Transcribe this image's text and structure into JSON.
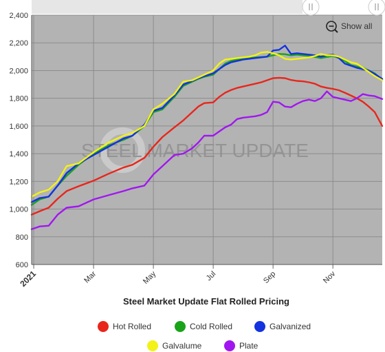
{
  "chart_data": {
    "type": "line",
    "title": "Steel Market Update Flat Rolled Pricing",
    "watermark": "STEEL MARKET UPDATE",
    "show_all_label": "Show all",
    "xlabel": "",
    "ylabel": "",
    "ylim": [
      600,
      2400
    ],
    "yticks": [
      "600",
      "800",
      "1,000",
      "1,200",
      "1,400",
      "1,600",
      "1,800",
      "2,000",
      "2,200",
      "2,400"
    ],
    "xlim": [
      -0.07,
      11.65
    ],
    "xticks": [
      {
        "label": "2021",
        "x": 0,
        "bold": true
      },
      {
        "label": "Mar",
        "x": 2,
        "bold": false
      },
      {
        "label": "May",
        "x": 4,
        "bold": false
      },
      {
        "label": "Jul",
        "x": 6,
        "bold": false
      },
      {
        "label": "Sep",
        "x": 8,
        "bold": false
      },
      {
        "label": "Nov",
        "x": 10,
        "bold": false
      }
    ],
    "grid": true,
    "legend_position": "bottom",
    "plot_background": "#b3b3b3",
    "series": [
      {
        "name": "Hot Rolled",
        "color": "#e8261c",
        "x": [
          -0.07,
          0.2,
          0.5,
          0.8,
          1.1,
          1.5,
          2,
          2.5,
          3,
          3.3,
          3.7,
          4,
          4.3,
          4.7,
          5,
          5.3,
          5.5,
          5.7,
          6,
          6.2,
          6.4,
          6.6,
          6.8,
          7,
          7.2,
          7.4,
          7.6,
          7.8,
          8,
          8.2,
          8.4,
          8.6,
          8.8,
          9,
          9.2,
          9.4,
          9.6,
          9.8,
          10,
          10.2,
          10.4,
          10.6,
          10.8,
          11,
          11.2,
          11.4,
          11.65
        ],
        "values": [
          960,
          985,
          1010,
          1075,
          1130,
          1165,
          1205,
          1255,
          1300,
          1320,
          1370,
          1450,
          1520,
          1590,
          1640,
          1700,
          1740,
          1765,
          1770,
          1810,
          1840,
          1860,
          1875,
          1885,
          1895,
          1905,
          1915,
          1930,
          1945,
          1948,
          1945,
          1932,
          1925,
          1922,
          1915,
          1905,
          1885,
          1875,
          1868,
          1858,
          1840,
          1820,
          1800,
          1775,
          1740,
          1700,
          1600
        ]
      },
      {
        "name": "Cold Rolled",
        "color": "#19a319",
        "x": [
          -0.07,
          0.2,
          0.5,
          0.8,
          1.1,
          1.5,
          2,
          2.5,
          3,
          3.3,
          3.7,
          4,
          4.3,
          4.7,
          5,
          5.3,
          5.5,
          5.7,
          6,
          6.2,
          6.4,
          6.6,
          6.8,
          7,
          7.2,
          7.4,
          7.6,
          7.8,
          8,
          8.2,
          8.4,
          8.6,
          8.8,
          9,
          9.2,
          9.4,
          9.6,
          9.8,
          10,
          10.2,
          10.4,
          10.6,
          10.8,
          11,
          11.2,
          11.4,
          11.65
        ],
        "values": [
          1030,
          1070,
          1090,
          1170,
          1240,
          1320,
          1400,
          1460,
          1500,
          1530,
          1600,
          1700,
          1720,
          1810,
          1890,
          1920,
          1940,
          1955,
          1970,
          2010,
          2050,
          2070,
          2080,
          2085,
          2090,
          2095,
          2098,
          2100,
          2110,
          2120,
          2118,
          2110,
          2115,
          2110,
          2105,
          2098,
          2090,
          2098,
          2105,
          2090,
          2070,
          2040,
          2030,
          2020,
          2000,
          1980,
          1935
        ]
      },
      {
        "name": "Galvanized",
        "color": "#1432e0",
        "x": [
          -0.07,
          0.2,
          0.5,
          0.8,
          1.1,
          1.5,
          2,
          2.5,
          3,
          3.3,
          3.7,
          4,
          4.3,
          4.7,
          5,
          5.3,
          5.5,
          5.7,
          6,
          6.2,
          6.4,
          6.6,
          6.8,
          7,
          7.2,
          7.4,
          7.6,
          7.8,
          8,
          8.2,
          8.4,
          8.6,
          8.8,
          9,
          9.2,
          9.4,
          9.6,
          9.8,
          10,
          10.2,
          10.4,
          10.6,
          10.8,
          11,
          11.2,
          11.4,
          11.65
        ],
        "values": [
          1050,
          1080,
          1090,
          1170,
          1260,
          1330,
          1390,
          1450,
          1510,
          1530,
          1610,
          1710,
          1730,
          1820,
          1900,
          1925,
          1945,
          1960,
          1980,
          2010,
          2040,
          2060,
          2070,
          2080,
          2085,
          2090,
          2095,
          2100,
          2145,
          2150,
          2180,
          2120,
          2125,
          2120,
          2115,
          2110,
          2100,
          2110,
          2115,
          2090,
          2050,
          2035,
          2020,
          2010,
          2000,
          1975,
          1940
        ]
      },
      {
        "name": "Galvalume",
        "color": "#f2f217",
        "x": [
          -0.07,
          0.2,
          0.5,
          0.8,
          1.1,
          1.5,
          2,
          2.5,
          3,
          3.3,
          3.7,
          4,
          4.3,
          4.7,
          5,
          5.3,
          5.5,
          5.7,
          6,
          6.2,
          6.4,
          6.6,
          6.8,
          7,
          7.2,
          7.4,
          7.6,
          7.8,
          8,
          8.2,
          8.4,
          8.6,
          8.8,
          9,
          9.2,
          9.4,
          9.6,
          9.8,
          10,
          10.2,
          10.4,
          10.6,
          10.8,
          11,
          11.2,
          11.4,
          11.65
        ],
        "values": [
          1090,
          1120,
          1140,
          1200,
          1310,
          1330,
          1410,
          1480,
          1530,
          1550,
          1600,
          1720,
          1760,
          1830,
          1920,
          1930,
          1950,
          1970,
          2000,
          2050,
          2080,
          2085,
          2090,
          2095,
          2100,
          2110,
          2130,
          2135,
          2125,
          2110,
          2085,
          2080,
          2085,
          2090,
          2095,
          2105,
          2120,
          2110,
          2110,
          2100,
          2080,
          2060,
          2050,
          2020,
          1990,
          1960,
          1930
        ]
      },
      {
        "name": "Plate",
        "color": "#a116f0",
        "x": [
          -0.07,
          0.2,
          0.5,
          0.8,
          1.1,
          1.5,
          2,
          2.5,
          3,
          3.3,
          3.7,
          4,
          4.3,
          4.7,
          5,
          5.3,
          5.5,
          5.7,
          6,
          6.2,
          6.4,
          6.6,
          6.8,
          7,
          7.2,
          7.4,
          7.6,
          7.8,
          8,
          8.2,
          8.4,
          8.6,
          8.8,
          9,
          9.2,
          9.4,
          9.6,
          9.8,
          10,
          10.2,
          10.4,
          10.6,
          10.8,
          11,
          11.2,
          11.4,
          11.65
        ],
        "values": [
          855,
          875,
          880,
          960,
          1010,
          1020,
          1070,
          1100,
          1130,
          1150,
          1170,
          1250,
          1310,
          1390,
          1400,
          1440,
          1480,
          1530,
          1530,
          1560,
          1590,
          1610,
          1650,
          1660,
          1665,
          1670,
          1680,
          1700,
          1775,
          1770,
          1740,
          1735,
          1760,
          1780,
          1790,
          1780,
          1800,
          1850,
          1810,
          1800,
          1790,
          1780,
          1800,
          1830,
          1820,
          1815,
          1795
        ]
      }
    ]
  }
}
